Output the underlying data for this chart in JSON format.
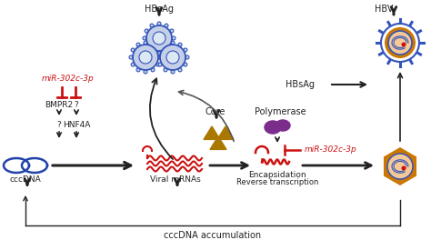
{
  "background_color": "#ffffff",
  "text_color_black": "#222222",
  "red_color": "#cc1111",
  "dark_blue": "#2244aa",
  "blue_fill": "#c5d0e8",
  "blue_ring": "#3355bb",
  "orange_color": "#cc7700",
  "gold_color": "#aa7700",
  "purple_color": "#7b2d8b",
  "peach_color": "#f5c898",
  "labels": {
    "HBsAg_top": "HBsAg",
    "HBV": "HBV",
    "miR_left": "miR-302c-3p",
    "BMPR2": "BMPR2",
    "question": "?",
    "HNF4A": "HNF4A",
    "cccDNA": "cccDNA",
    "viral_mRNAs": "Viral mRNAs",
    "Core": "Core",
    "Polymerase": "Polymerase",
    "HBsAg_mid": "HBsAg",
    "miR_right": "miR-302c-3p",
    "Encapsidation": "Encapsidation",
    "Reverse": "Reverse transcription",
    "cccDNA_accum": "cccDNA accumulation"
  }
}
